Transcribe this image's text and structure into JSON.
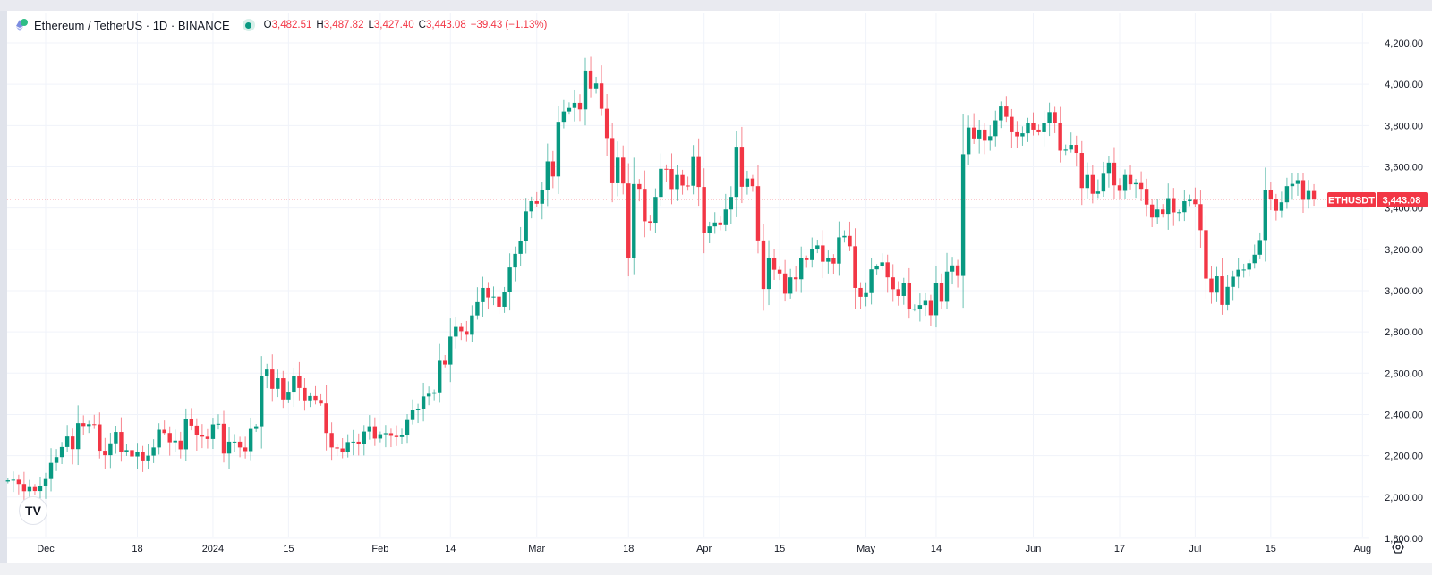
{
  "header": {
    "symbol": "Ethereum / TetherUS · 1D · BINANCE",
    "open_label": "O",
    "open": "3,482.51",
    "high_label": "H",
    "high": "3,487.82",
    "low_label": "L",
    "low": "3,427.40",
    "close_label": "C",
    "close": "3,443.08",
    "change": "−39.43 (−1.13%)"
  },
  "price_tag": {
    "ticker": "ETHUSDT",
    "price": "3,443.08"
  },
  "logo_text": "TV",
  "colors": {
    "up": "#089981",
    "down": "#f23645",
    "grid": "#f0f3fa",
    "text": "#131722"
  },
  "chart_data": {
    "type": "candlestick",
    "title": "Ethereum / TetherUS · 1D · BINANCE",
    "interval": "1D",
    "first_open": 2075,
    "last_price": 3443.08,
    "ylim": [
      1750,
      4260
    ],
    "y_ticks": [
      {
        "value": 4200,
        "label": "4,200.00"
      },
      {
        "value": 4000,
        "label": "4,000.00"
      },
      {
        "value": 3800,
        "label": "3,800.00"
      },
      {
        "value": 3600,
        "label": "3,600.00"
      },
      {
        "value": 3400,
        "label": "3,400.00"
      },
      {
        "value": 3200,
        "label": "3,200.00"
      },
      {
        "value": 3000,
        "label": "3,000.00"
      },
      {
        "value": 2800,
        "label": "2,800.00"
      },
      {
        "value": 2600,
        "label": "2,600.00"
      },
      {
        "value": 2400,
        "label": "2,400.00"
      },
      {
        "value": 2200,
        "label": "2,200.00"
      },
      {
        "value": 2000,
        "label": "2,000.00"
      },
      {
        "value": 1800,
        "label": "1,800.00"
      }
    ],
    "x_ticks": [
      {
        "day": 7,
        "label": "Dec"
      },
      {
        "day": 24,
        "label": "18"
      },
      {
        "day": 38,
        "label": "2024"
      },
      {
        "day": 52,
        "label": "15"
      },
      {
        "day": 69,
        "label": "Feb"
      },
      {
        "day": 82,
        "label": "14"
      },
      {
        "day": 98,
        "label": "Mar"
      },
      {
        "day": 115,
        "label": "18"
      },
      {
        "day": 129,
        "label": "Apr"
      },
      {
        "day": 143,
        "label": "15"
      },
      {
        "day": 159,
        "label": "May"
      },
      {
        "day": 172,
        "label": "14"
      },
      {
        "day": 190,
        "label": "Jun"
      },
      {
        "day": 206,
        "label": "17"
      },
      {
        "day": 220,
        "label": "Jul"
      },
      {
        "day": 234,
        "label": "15"
      },
      {
        "day": 251,
        "label": "Aug"
      }
    ],
    "closes": [
      2081,
      2084,
      2063,
      2028,
      2048,
      2029,
      2052,
      2087,
      2165,
      2193,
      2242,
      2293,
      2232,
      2358,
      2344,
      2353,
      2352,
      2224,
      2202,
      2260,
      2315,
      2220,
      2227,
      2196,
      2218,
      2177,
      2200,
      2240,
      2326,
      2310,
      2265,
      2273,
      2231,
      2379,
      2346,
      2298,
      2292,
      2281,
      2352,
      2355,
      2210,
      2268,
      2268,
      2240,
      2222,
      2330,
      2343,
      2584,
      2618,
      2524,
      2575,
      2472,
      2510,
      2587,
      2528,
      2468,
      2489,
      2470,
      2453,
      2310,
      2240,
      2235,
      2217,
      2266,
      2268,
      2257,
      2317,
      2343,
      2283,
      2304,
      2309,
      2296,
      2290,
      2299,
      2373,
      2420,
      2428,
      2487,
      2500,
      2507,
      2660,
      2642,
      2777,
      2824,
      2803,
      2786,
      2880,
      2944,
      3013,
      2967,
      2971,
      2922,
      2992,
      3112,
      3178,
      3242,
      3384,
      3433,
      3421,
      3489,
      3626,
      3553,
      3818,
      3868,
      3885,
      3910,
      3878,
      4066,
      3980,
      4004,
      3881,
      3739,
      3520,
      3644,
      3519,
      3159,
      3516,
      3493,
      3336,
      3329,
      3454,
      3590,
      3589,
      3492,
      3560,
      3509,
      3508,
      3647,
      3502,
      3278,
      3311,
      3330,
      3317,
      3393,
      3454,
      3697,
      3503,
      3543,
      3506,
      3243,
      3008,
      3157,
      3101,
      3083,
      2985,
      3064,
      3055,
      3156,
      3148,
      3201,
      3219,
      3140,
      3156,
      3131,
      3258,
      3265,
      3215,
      3013,
      2970,
      2988,
      3103,
      3117,
      3137,
      3064,
      3007,
      2974,
      3036,
      2910,
      2912,
      2930,
      2950,
      2881,
      3037,
      2946,
      3092,
      3122,
      3071,
      3661,
      3790,
      3737,
      3780,
      3726,
      3748,
      3825,
      3892,
      3842,
      3767,
      3747,
      3762,
      3814,
      3780,
      3767,
      3810,
      3865,
      3813,
      3678,
      3683,
      3706,
      3667,
      3497,
      3560,
      3469,
      3480,
      3566,
      3620,
      3510,
      3483,
      3560,
      3515,
      3521,
      3493,
      3417,
      3354,
      3393,
      3372,
      3448,
      3379,
      3380,
      3433,
      3440,
      3419,
      3293,
      3058,
      2990,
      3069,
      2931,
      3018,
      3067,
      3101,
      3102,
      3133,
      3174,
      3245,
      3486,
      3444,
      3387,
      3428,
      3506,
      3517,
      3535,
      3440,
      3482.51,
      3443.08
    ]
  }
}
